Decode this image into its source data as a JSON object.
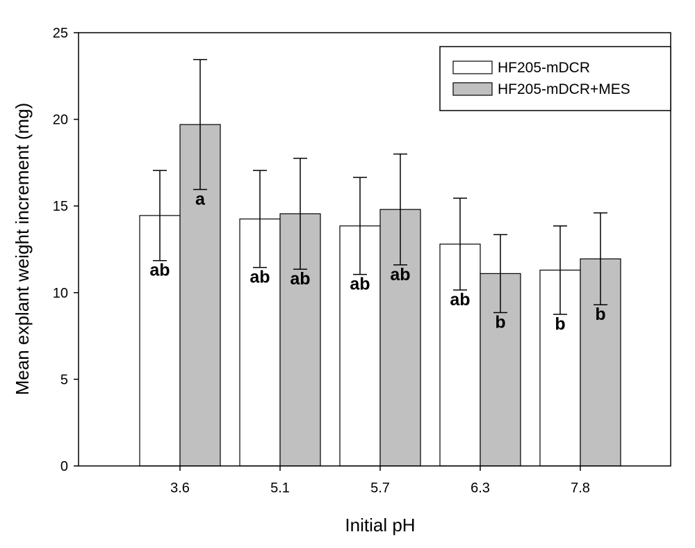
{
  "chart_data": {
    "type": "bar",
    "xlabel": "Initial pH",
    "ylabel": "Mean explant weight increment (mg)",
    "ylim": [
      0,
      25
    ],
    "yticks": [
      0,
      5,
      10,
      15,
      20,
      25
    ],
    "categories": [
      "3.6",
      "5.1",
      "5.7",
      "6.3",
      "7.8"
    ],
    "series": [
      {
        "name": "HF205-mDCR",
        "color": "#ffffff",
        "values": [
          14.45,
          14.25,
          13.85,
          12.8,
          11.3
        ],
        "errors": [
          2.6,
          2.8,
          2.8,
          2.65,
          2.55
        ],
        "labels": [
          "ab",
          "ab",
          "ab",
          "ab",
          "b"
        ]
      },
      {
        "name": "HF205-mDCR+MES",
        "color": "#c0c0c0",
        "values": [
          19.7,
          14.55,
          14.8,
          11.1,
          11.95
        ],
        "errors": [
          3.75,
          3.2,
          3.2,
          2.25,
          2.65
        ],
        "labels": [
          "a",
          "ab",
          "ab",
          "b",
          "b"
        ]
      }
    ],
    "legend_position": "top-right",
    "grid": false
  }
}
